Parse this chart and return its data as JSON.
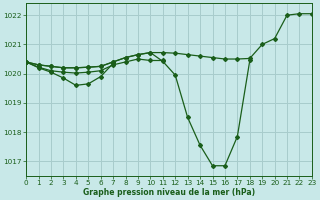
{
  "bg_color": "#c8e8e8",
  "grid_color": "#a8cccc",
  "line_color": "#1a5e1a",
  "xlabel": "Graphe pression niveau de la mer (hPa)",
  "xlim": [
    0,
    23
  ],
  "ylim": [
    1016.5,
    1022.4
  ],
  "yticks": [
    1017,
    1018,
    1019,
    1020,
    1021,
    1022
  ],
  "xticks": [
    0,
    1,
    2,
    3,
    4,
    5,
    6,
    7,
    8,
    9,
    10,
    11,
    12,
    13,
    14,
    15,
    16,
    17,
    18,
    19,
    20,
    21,
    22,
    23
  ],
  "series": [
    {
      "x": [
        0,
        1,
        2,
        3,
        4,
        5,
        6,
        7
      ],
      "y": [
        1020.4,
        1020.2,
        1020.05,
        1019.85,
        1019.6,
        1019.65,
        1019.9,
        1020.35
      ]
    },
    {
      "x": [
        0,
        1,
        2,
        3,
        4,
        5,
        6,
        7,
        8,
        9,
        10,
        11
      ],
      "y": [
        1020.4,
        1020.22,
        1020.1,
        1020.05,
        1020.02,
        1020.05,
        1020.1,
        1020.3,
        1020.4,
        1020.5,
        1020.45,
        1020.45
      ]
    },
    {
      "x": [
        0,
        1,
        2,
        3,
        4,
        5,
        6,
        7,
        8,
        9,
        10,
        11,
        12,
        13,
        14,
        15,
        16,
        17,
        18,
        19,
        20,
        21,
        22,
        23
      ],
      "y": [
        1020.4,
        1020.3,
        1020.25,
        1020.2,
        1020.2,
        1020.22,
        1020.25,
        1020.4,
        1020.55,
        1020.65,
        1020.72,
        1020.72,
        1020.7,
        1020.65,
        1020.6,
        1020.55,
        1020.5,
        1020.5,
        1020.52,
        1021.0,
        1021.2,
        1022.0,
        1022.05,
        1022.05
      ]
    },
    {
      "x": [
        0,
        1,
        2,
        3,
        4,
        5,
        6,
        7,
        8,
        9,
        10,
        11,
        12,
        13,
        14,
        15,
        16,
        17,
        18
      ],
      "y": [
        1020.4,
        1020.3,
        1020.25,
        1020.2,
        1020.2,
        1020.22,
        1020.25,
        1020.4,
        1020.55,
        1020.65,
        1020.72,
        1020.42,
        1019.95,
        1018.5,
        1017.55,
        1016.85,
        1016.85,
        1017.85,
        1020.45
      ]
    }
  ]
}
